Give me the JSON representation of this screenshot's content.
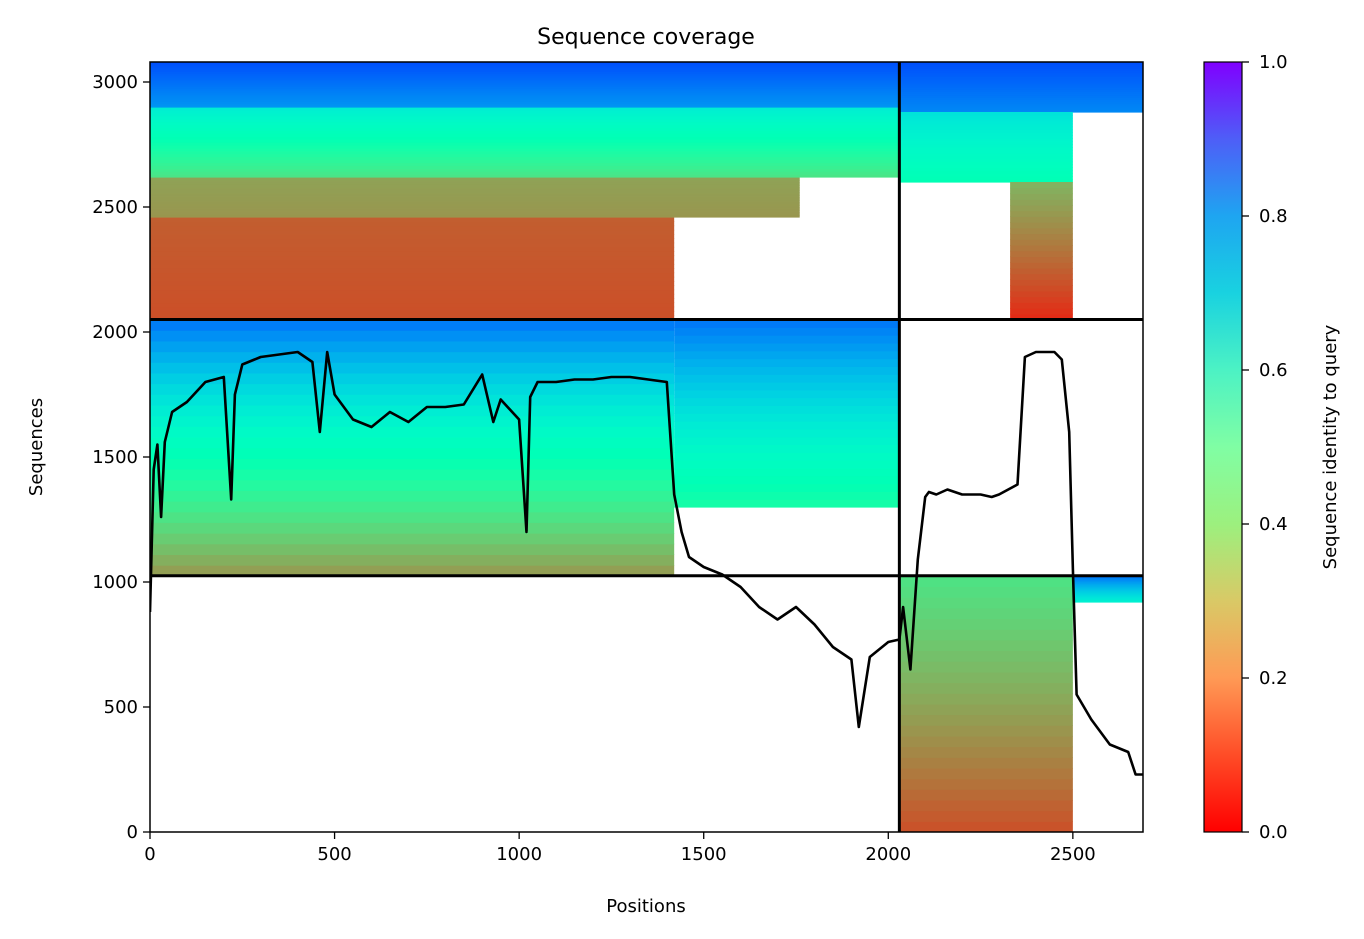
{
  "chart_data": {
    "type": "heatmap",
    "title": "Sequence coverage",
    "xlabel": "Positions",
    "ylabel": "Sequences",
    "xlim": [
      0,
      2690
    ],
    "ylim": [
      0,
      3080
    ],
    "xticks": [
      0,
      500,
      1000,
      1500,
      2000,
      2500
    ],
    "yticks": [
      0,
      500,
      1000,
      1500,
      2000,
      2500,
      3000
    ],
    "chain_boundaries": {
      "x": [
        2030
      ],
      "y": [
        1025,
        2050
      ]
    },
    "colorbar": {
      "label": "Sequence identity to query",
      "colormap": "rainbow_r",
      "range": [
        0.0,
        1.0
      ],
      "ticks": [
        0.0,
        0.2,
        0.4,
        0.6,
        0.8,
        1.0
      ],
      "tick_labels": [
        "0.0",
        "0.2",
        "0.4",
        "0.6",
        "0.8",
        "1.0"
      ]
    },
    "blocks": [
      {
        "x_range": [
          0,
          1420
        ],
        "y_range": [
          1025,
          2050
        ],
        "identity_bottom": 0.2,
        "identity_top": 0.85
      },
      {
        "x_range": [
          1420,
          2030
        ],
        "y_range": [
          1300,
          2050
        ],
        "identity_bottom": 0.45,
        "identity_top": 0.85
      },
      {
        "x_range": [
          0,
          1420
        ],
        "y_range": [
          2050,
          2460
        ],
        "identity_bottom": 0.1,
        "identity_top": 0.12
      },
      {
        "x_range": [
          0,
          1760
        ],
        "y_range": [
          2460,
          2620
        ],
        "identity_bottom": 0.2,
        "identity_top": 0.22
      },
      {
        "x_range": [
          0,
          2030
        ],
        "y_range": [
          2620,
          2900
        ],
        "identity_bottom": 0.35,
        "identity_top": 0.62
      },
      {
        "x_range": [
          0,
          2030
        ],
        "y_range": [
          2900,
          3080
        ],
        "identity_bottom": 0.8,
        "identity_top": 0.9
      },
      {
        "x_range": [
          2030,
          2690
        ],
        "y_range": [
          2880,
          3080
        ],
        "identity_bottom": 0.82,
        "identity_top": 0.9
      },
      {
        "x_range": [
          2030,
          2500
        ],
        "y_range": [
          2600,
          2880
        ],
        "identity_bottom": 0.5,
        "identity_top": 0.65
      },
      {
        "x_range": [
          2330,
          2500
        ],
        "y_range": [
          2050,
          2600
        ],
        "identity_bottom": 0.05,
        "identity_top": 0.25
      },
      {
        "x_range": [
          2030,
          2500
        ],
        "y_range": [
          0,
          1025
        ],
        "identity_bottom": 0.1,
        "identity_top": 0.35
      },
      {
        "x_range": [
          2500,
          2690
        ],
        "y_range": [
          920,
          1025
        ],
        "identity_bottom": 0.6,
        "identity_top": 0.85
      }
    ],
    "coverage_line": {
      "x": [
        0,
        10,
        20,
        30,
        40,
        60,
        80,
        100,
        150,
        200,
        220,
        230,
        250,
        300,
        350,
        400,
        440,
        460,
        480,
        500,
        550,
        600,
        650,
        700,
        750,
        800,
        850,
        900,
        930,
        950,
        1000,
        1020,
        1030,
        1050,
        1100,
        1150,
        1200,
        1250,
        1300,
        1350,
        1400,
        1420,
        1440,
        1460,
        1500,
        1550,
        1600,
        1650,
        1700,
        1750,
        1800,
        1850,
        1900,
        1920,
        1950,
        2000,
        2030,
        2040,
        2060,
        2080,
        2100,
        2110,
        2130,
        2160,
        2200,
        2250,
        2280,
        2300,
        2350,
        2370,
        2400,
        2450,
        2470,
        2490,
        2500,
        2510,
        2550,
        2600,
        2650,
        2670,
        2690
      ],
      "y": [
        880,
        1450,
        1550,
        1260,
        1560,
        1680,
        1700,
        1720,
        1800,
        1820,
        1330,
        1750,
        1870,
        1900,
        1910,
        1920,
        1880,
        1600,
        1920,
        1750,
        1650,
        1620,
        1680,
        1640,
        1700,
        1700,
        1710,
        1830,
        1640,
        1730,
        1650,
        1200,
        1740,
        1800,
        1800,
        1810,
        1810,
        1820,
        1820,
        1810,
        1800,
        1350,
        1200,
        1100,
        1060,
        1030,
        980,
        900,
        850,
        900,
        830,
        740,
        690,
        420,
        700,
        760,
        770,
        900,
        650,
        1090,
        1340,
        1360,
        1350,
        1370,
        1350,
        1350,
        1340,
        1350,
        1390,
        1900,
        1920,
        1920,
        1890,
        1600,
        1050,
        550,
        450,
        350,
        320,
        230,
        230
      ]
    }
  }
}
